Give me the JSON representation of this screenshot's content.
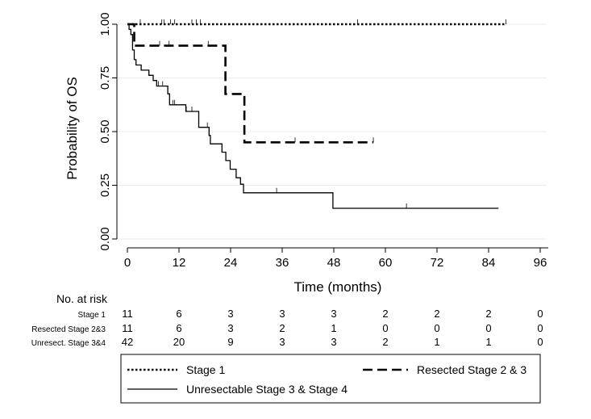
{
  "chart_data": {
    "type": "line",
    "subtype": "kaplan-meier",
    "title": "",
    "xlabel": "Time (months)",
    "ylabel": "Probability of OS",
    "xlim": [
      0,
      96
    ],
    "ylim": [
      0,
      1
    ],
    "xticks": [
      0,
      12,
      24,
      36,
      48,
      60,
      72,
      84,
      96
    ],
    "yticks": [
      "0.00",
      "0.25",
      "0.50",
      "0.75",
      "1.00"
    ],
    "grid": true,
    "series": [
      {
        "name": "Stage 1",
        "style": "dotted",
        "steps": [
          [
            0,
            1.0
          ],
          [
            88,
            1.0
          ]
        ],
        "censored": [
          [
            3,
            1.0
          ],
          [
            8,
            1.0
          ],
          [
            8.5,
            1.0
          ],
          [
            10,
            1.0
          ],
          [
            11,
            1.0
          ],
          [
            15,
            1.0
          ],
          [
            16,
            1.0
          ],
          [
            17,
            1.0
          ],
          [
            53.5,
            1.0
          ],
          [
            88,
            1.0
          ]
        ]
      },
      {
        "name": "Resected Stage 2 & 3",
        "style": "dashed",
        "steps": [
          [
            0,
            1.0
          ],
          [
            1.6,
            1.0
          ],
          [
            1.6,
            0.9
          ],
          [
            22.8,
            0.9
          ],
          [
            22.8,
            0.675
          ],
          [
            27.2,
            0.675
          ],
          [
            27.2,
            0.45
          ],
          [
            57.2,
            0.45
          ]
        ],
        "censored": [
          [
            7.5,
            0.9
          ],
          [
            9.7,
            0.9
          ],
          [
            18.8,
            0.9
          ],
          [
            39,
            0.45
          ],
          [
            57.2,
            0.45
          ]
        ]
      },
      {
        "name": "Unresectable Stage 3 & Stage 4",
        "style": "solid",
        "steps": [
          [
            0,
            1.0
          ],
          [
            0.4,
            1.0
          ],
          [
            0.4,
            0.976
          ],
          [
            0.8,
            0.976
          ],
          [
            0.8,
            0.952
          ],
          [
            1.2,
            0.952
          ],
          [
            1.2,
            0.88
          ],
          [
            1.6,
            0.88
          ],
          [
            1.6,
            0.835
          ],
          [
            2.0,
            0.835
          ],
          [
            2.0,
            0.81
          ],
          [
            3.2,
            0.81
          ],
          [
            3.2,
            0.786
          ],
          [
            5.0,
            0.786
          ],
          [
            5.0,
            0.762
          ],
          [
            6.0,
            0.762
          ],
          [
            6.0,
            0.738
          ],
          [
            6.8,
            0.738
          ],
          [
            6.8,
            0.712
          ],
          [
            9.4,
            0.712
          ],
          [
            9.4,
            0.676
          ],
          [
            9.8,
            0.676
          ],
          [
            9.8,
            0.625
          ],
          [
            13.6,
            0.625
          ],
          [
            13.6,
            0.594
          ],
          [
            16.6,
            0.594
          ],
          [
            16.6,
            0.52
          ],
          [
            19.0,
            0.52
          ],
          [
            19.0,
            0.482
          ],
          [
            19.3,
            0.482
          ],
          [
            19.3,
            0.443
          ],
          [
            22.0,
            0.443
          ],
          [
            22.0,
            0.404
          ],
          [
            22.9,
            0.404
          ],
          [
            22.9,
            0.365
          ],
          [
            23.9,
            0.365
          ],
          [
            23.9,
            0.325
          ],
          [
            25.3,
            0.325
          ],
          [
            25.3,
            0.285
          ],
          [
            26.3,
            0.285
          ],
          [
            26.3,
            0.255
          ],
          [
            27.0,
            0.255
          ],
          [
            27.0,
            0.215
          ],
          [
            47.8,
            0.215
          ],
          [
            47.8,
            0.143
          ],
          [
            86.3,
            0.143
          ]
        ],
        "censored": [
          [
            7.2,
            0.712
          ],
          [
            8.2,
            0.712
          ],
          [
            10.6,
            0.625
          ],
          [
            11.0,
            0.625
          ],
          [
            13.7,
            0.594
          ],
          [
            15.0,
            0.594
          ],
          [
            18.6,
            0.52
          ],
          [
            34.7,
            0.215
          ],
          [
            64.9,
            0.143
          ]
        ]
      }
    ],
    "risk_table": {
      "title": "No. at risk",
      "times": [
        0,
        12,
        24,
        36,
        48,
        60,
        72,
        84,
        96
      ],
      "rows": [
        {
          "label": "Stage 1",
          "values": [
            "11",
            "6",
            "3",
            "3",
            "3",
            "2",
            "2",
            "2",
            "0"
          ]
        },
        {
          "label": "Resected Stage 2&3",
          "values": [
            "11",
            "6",
            "3",
            "2",
            "1",
            "0",
            "0",
            "0",
            "0"
          ]
        },
        {
          "label": "Unresect. Stage 3&4",
          "values": [
            "42",
            "20",
            "9",
            "3",
            "3",
            "2",
            "1",
            "1",
            "0"
          ]
        }
      ]
    },
    "legend": {
      "position": "bottom",
      "items": [
        {
          "label": "Stage 1",
          "style": "dotted"
        },
        {
          "label": "Resected Stage 2 & 3",
          "style": "dashed"
        },
        {
          "label": "Unresectable Stage 3 & Stage 4",
          "style": "solid"
        }
      ]
    },
    "colors": {
      "line": "#000000",
      "grid": "#ebebeb",
      "background": "#ffffff"
    }
  }
}
